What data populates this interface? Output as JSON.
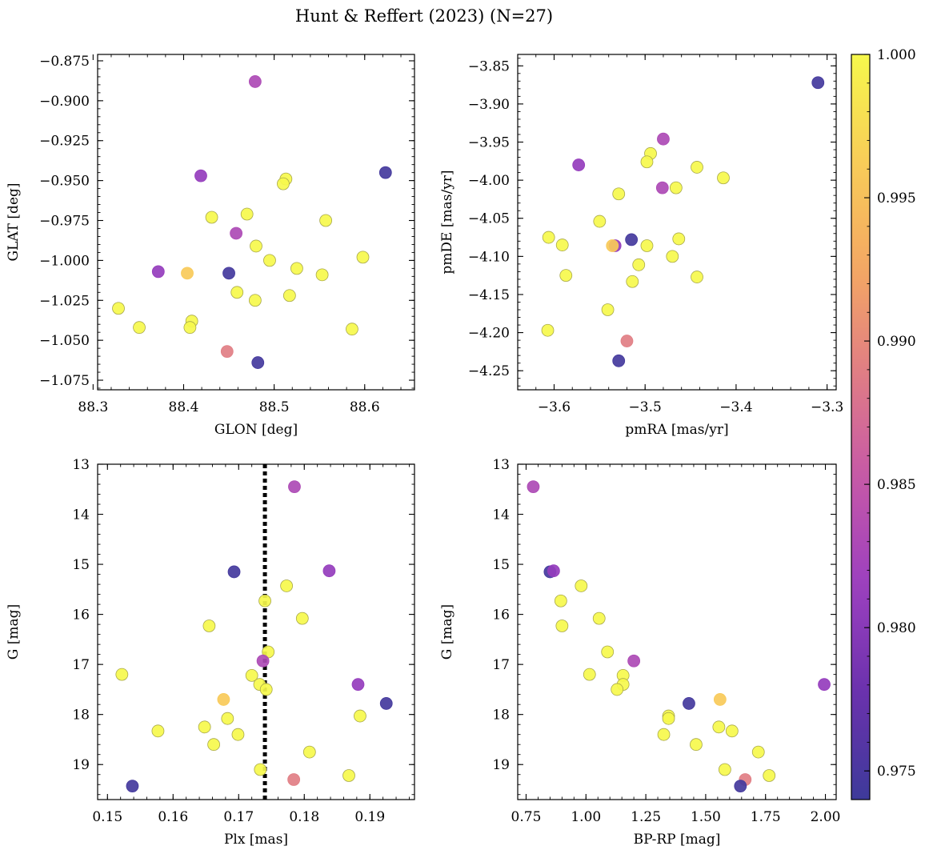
{
  "title": "Hunt & Reffert (2023) (N=27)",
  "colorbar": {
    "min": 0.974,
    "max": 1.0,
    "ticks": [
      0.975,
      0.98,
      0.985,
      0.99,
      0.995,
      1.0
    ],
    "tick_labels": [
      "0.975",
      "0.980",
      "0.985",
      "0.990",
      "0.995",
      "1.000"
    ],
    "cmap": "plasma",
    "colormap_stops": [
      "#3e3a9a",
      "#6a31ad",
      "#9b3fbf",
      "#c558a8",
      "#e07c85",
      "#f4a862",
      "#f8cd58",
      "#f6f84c"
    ]
  },
  "chart_data": [
    {
      "type": "scatter",
      "xlabel": "GLON [deg]",
      "ylabel": "GLAT [deg]",
      "xlim": [
        88.305,
        88.655
      ],
      "ylim": [
        -1.081,
        -0.871
      ],
      "x_ticks": [
        88.3,
        88.4,
        88.5,
        88.6
      ],
      "x_tick_labels": [
        "88.3",
        "88.4",
        "88.5",
        "88.6"
      ],
      "y_ticks": [
        -0.875,
        -0.9,
        -0.925,
        -0.95,
        -0.975,
        -1.0,
        -1.025,
        -1.05,
        -1.075
      ],
      "y_tick_labels": [
        "−0.875",
        "−0.900",
        "−0.925",
        "−0.950",
        "−0.975",
        "−1.000",
        "−1.025",
        "−1.050",
        "−1.075"
      ],
      "x": [
        88.479,
        88.623,
        88.419,
        88.513,
        88.51,
        88.47,
        88.431,
        88.557,
        88.458,
        88.48,
        88.495,
        88.598,
        88.525,
        88.372,
        88.404,
        88.45,
        88.553,
        88.459,
        88.517,
        88.479,
        88.328,
        88.409,
        88.351,
        88.407,
        88.586,
        88.448,
        88.482
      ],
      "y": [
        -0.888,
        -0.945,
        -0.947,
        -0.949,
        -0.952,
        -0.971,
        -0.973,
        -0.975,
        -0.983,
        -0.991,
        -1.0,
        -0.998,
        -1.005,
        -1.007,
        -1.008,
        -1.008,
        -1.009,
        -1.02,
        -1.022,
        -1.025,
        -1.03,
        -1.038,
        -1.042,
        -1.042,
        -1.043,
        -1.057,
        -1.064
      ]
    },
    {
      "type": "scatter",
      "xlabel": "pmRA [mas/yr]",
      "ylabel": "pmDE [mas/yr]",
      "xlim": [
        -3.64,
        -3.29
      ],
      "ylim": [
        -4.275,
        -3.835
      ],
      "x_ticks": [
        -3.6,
        -3.5,
        -3.4,
        -3.3
      ],
      "x_tick_labels": [
        "−3.6",
        "−3.5",
        "−3.4",
        "−3.3"
      ],
      "y_ticks": [
        -3.85,
        -3.9,
        -3.95,
        -4.0,
        -4.05,
        -4.1,
        -4.15,
        -4.2,
        -4.25
      ],
      "y_tick_labels": [
        "−3.85",
        "−3.90",
        "−3.95",
        "−4.00",
        "−4.05",
        "−4.10",
        "−4.15",
        "−4.20",
        "−4.25"
      ],
      "x": [
        -3.48,
        -3.31,
        -3.573,
        -3.443,
        -3.414,
        -3.466,
        -3.494,
        -3.498,
        -3.481,
        -3.47,
        -3.529,
        -3.55,
        -3.606,
        -3.533,
        -3.536,
        -3.515,
        -3.463,
        -3.591,
        -3.498,
        -3.507,
        -3.587,
        -3.443,
        -3.514,
        -3.541,
        -3.607,
        -3.52,
        -3.529
      ],
      "y": [
        -3.946,
        -3.872,
        -3.98,
        -3.983,
        -3.997,
        -4.01,
        -3.965,
        -3.976,
        -4.01,
        -4.1,
        -4.018,
        -4.054,
        -4.075,
        -4.086,
        -4.086,
        -4.078,
        -4.077,
        -4.085,
        -4.086,
        -4.111,
        -4.125,
        -4.127,
        -4.133,
        -4.17,
        -4.197,
        -4.211,
        -4.237
      ]
    },
    {
      "type": "scatter",
      "xlabel": "Plx [mas]",
      "ylabel": "G [mag]",
      "xlim": [
        0.1485,
        0.1968
      ],
      "ylim": [
        19.7,
        13.0
      ],
      "y_inverted": true,
      "vline_x": 0.174,
      "vline_style": "dotted",
      "x_ticks": [
        0.15,
        0.16,
        0.17,
        0.18,
        0.19
      ],
      "x_tick_labels": [
        "0.15",
        "0.16",
        "0.17",
        "0.18",
        "0.19"
      ],
      "y_ticks": [
        13,
        14,
        15,
        16,
        17,
        18,
        19
      ],
      "y_tick_labels": [
        "13",
        "14",
        "15",
        "16",
        "17",
        "18",
        "19"
      ],
      "x": [
        0.1785,
        0.1693,
        0.1838,
        0.1773,
        0.174,
        0.1655,
        0.1797,
        0.1745,
        0.1737,
        0.1522,
        0.172,
        0.1732,
        0.1742,
        0.1882,
        0.1677,
        0.1925,
        0.1577,
        0.1885,
        0.1648,
        0.1683,
        0.1699,
        0.1662,
        0.1808,
        0.1733,
        0.1868,
        0.1784,
        0.1538
      ],
      "y": [
        13.45,
        15.15,
        15.13,
        15.43,
        15.73,
        16.23,
        16.08,
        16.75,
        16.93,
        17.2,
        17.22,
        17.4,
        17.5,
        17.4,
        17.7,
        17.78,
        18.33,
        18.03,
        18.25,
        18.08,
        18.4,
        18.6,
        18.75,
        19.1,
        19.22,
        19.3,
        19.43
      ]
    },
    {
      "type": "scatter",
      "xlabel": "BP-RP [mag]",
      "ylabel": "G [mag]",
      "xlim": [
        0.715,
        2.045
      ],
      "ylim": [
        19.7,
        13.0
      ],
      "y_inverted": true,
      "x_ticks": [
        0.75,
        1.0,
        1.25,
        1.5,
        1.75,
        2.0
      ],
      "x_tick_labels": [
        "0.75",
        "1.00",
        "1.25",
        "1.50",
        "1.75",
        "2.00"
      ],
      "y_ticks": [
        13,
        14,
        15,
        16,
        17,
        18,
        19
      ],
      "y_tick_labels": [
        "13",
        "14",
        "15",
        "16",
        "17",
        "18",
        "19"
      ],
      "x": [
        0.78,
        0.85,
        0.865,
        0.98,
        0.895,
        1.055,
        0.9,
        1.09,
        1.2,
        1.015,
        1.155,
        1.155,
        1.13,
        1.995,
        1.56,
        1.43,
        1.61,
        1.345,
        1.555,
        1.345,
        1.325,
        1.46,
        1.72,
        1.58,
        1.765,
        1.665,
        1.645
      ],
      "y": [
        13.45,
        15.15,
        15.13,
        15.43,
        15.73,
        16.08,
        16.23,
        16.75,
        16.93,
        17.2,
        17.22,
        17.4,
        17.5,
        17.4,
        17.7,
        17.78,
        18.33,
        18.03,
        18.25,
        18.08,
        18.4,
        18.6,
        18.75,
        19.1,
        19.22,
        19.3,
        19.43
      ]
    }
  ],
  "membership_probability": [
    0.983,
    0.9745,
    0.981,
    1.0,
    1.0,
    1.0,
    1.0,
    1.0,
    0.983,
    1.0,
    1.0,
    1.0,
    1.0,
    0.981,
    0.996,
    0.9745,
    1.0,
    1.0,
    1.0,
    1.0,
    1.0,
    1.0,
    1.0,
    1.0,
    1.0,
    0.989,
    0.9745
  ]
}
